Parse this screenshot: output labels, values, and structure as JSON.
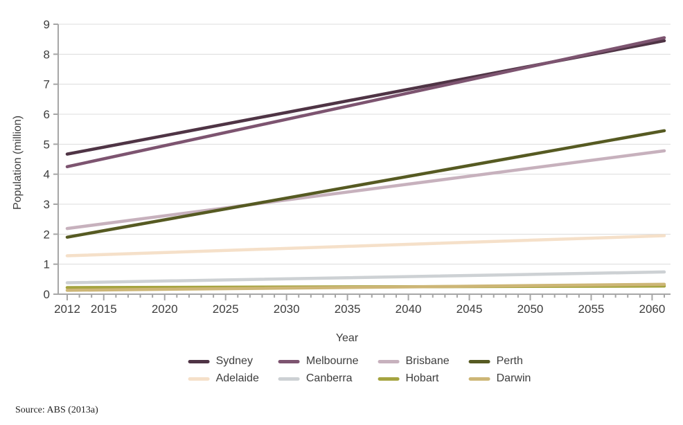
{
  "source_note": "Source: ABS (2013a)",
  "chart_data": {
    "type": "line",
    "title": "",
    "xlabel": "Year",
    "ylabel": "Population (million)",
    "x": [
      2012,
      2061
    ],
    "xlim": [
      2012,
      2061
    ],
    "ylim": [
      0,
      9
    ],
    "y_ticks": [
      0,
      1,
      2,
      3,
      4,
      5,
      6,
      7,
      8,
      9
    ],
    "x_tick_labels": [
      2012,
      2015,
      2020,
      2025,
      2030,
      2035,
      2040,
      2045,
      2050,
      2055,
      2060
    ],
    "x_minor_tick_step": 1,
    "grid": "horizontal",
    "legend_position": "bottom",
    "series": [
      {
        "name": "Sydney",
        "color": "#4f3445",
        "values": [
          4.67,
          8.45
        ]
      },
      {
        "name": "Melbourne",
        "color": "#7d5470",
        "values": [
          4.25,
          8.55
        ]
      },
      {
        "name": "Brisbane",
        "color": "#c7b1bd",
        "values": [
          2.19,
          4.78
        ]
      },
      {
        "name": "Perth",
        "color": "#565a22",
        "values": [
          1.9,
          5.45
        ]
      },
      {
        "name": "Adelaide",
        "color": "#f5e0c9",
        "values": [
          1.28,
          1.95
        ]
      },
      {
        "name": "Canberra",
        "color": "#cdd1d4",
        "values": [
          0.38,
          0.74
        ]
      },
      {
        "name": "Hobart",
        "color": "#a5a440",
        "values": [
          0.22,
          0.27
        ]
      },
      {
        "name": "Darwin",
        "color": "#cdb676",
        "values": [
          0.13,
          0.33
        ]
      }
    ],
    "axis_color": "#a6a6a6",
    "grid_color": "#dcdcdc",
    "text_color": "#3d3d3d"
  }
}
